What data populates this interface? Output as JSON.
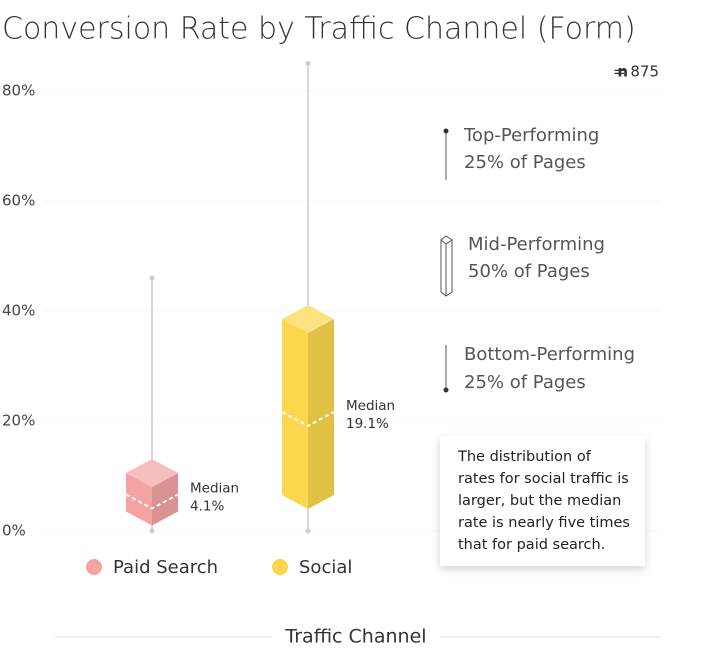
{
  "chart_data": {
    "type": "box",
    "title": "Conversion Rate by Traffic Channel (Form)",
    "sample_note": {
      "symbol": "n",
      "text": "= 875"
    },
    "xlabel": "Traffic Channel",
    "ylim": [
      0,
      86
    ],
    "yticks": [
      {
        "value": 0,
        "label": "0%"
      },
      {
        "value": 20,
        "label": "20%"
      },
      {
        "value": 40,
        "label": "40%"
      },
      {
        "value": 60,
        "label": "60%"
      },
      {
        "value": 80,
        "label": "80%"
      }
    ],
    "grid": true,
    "median_label": "Median",
    "series": [
      {
        "name": "Paid Search",
        "color": "#f4a3a3",
        "min": 0,
        "q1": 1,
        "median": 4.1,
        "median_value_label": "4.1%",
        "q3": 8,
        "max": 46
      },
      {
        "name": "Social",
        "color": "#fcd64c",
        "min": 0,
        "q1": 4,
        "median": 19.1,
        "median_value_label": "19.1%",
        "q3": 36,
        "max": 85
      }
    ],
    "key": [
      {
        "label": "Top-Performing",
        "sublabel": "25% of Pages"
      },
      {
        "label": "Mid-Performing",
        "sublabel": "50% of Pages"
      },
      {
        "label": "Bottom-Performing",
        "sublabel": "25% of Pages"
      }
    ],
    "note": "The distribution of rates for social traffic is larger, but the median rate is nearly five times that for paid search."
  }
}
